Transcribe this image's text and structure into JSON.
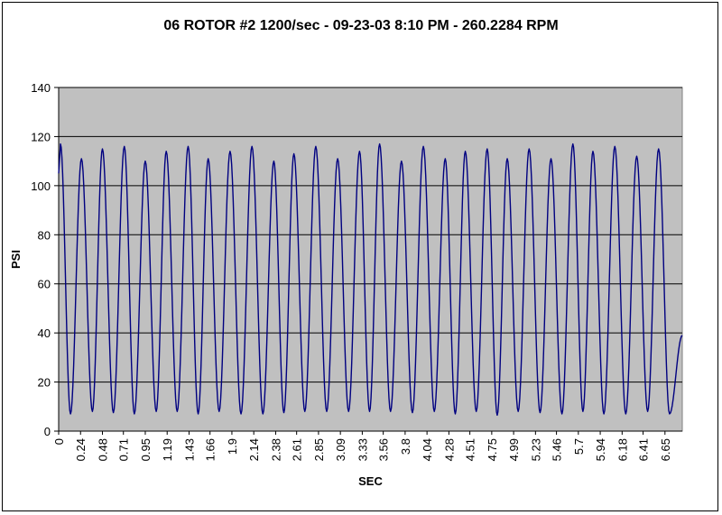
{
  "chart_data": {
    "type": "line",
    "title": "06 ROTOR #2 1200/sec - 09-23-03 8:10 PM -  260.2284 RPM",
    "xlabel": "SEC",
    "ylabel": "PSI",
    "xlim": [
      0,
      6.84
    ],
    "ylim": [
      0,
      140
    ],
    "y_ticks": [
      0,
      20,
      40,
      60,
      80,
      100,
      120,
      140
    ],
    "x_tick_labels": [
      "0",
      "0.24",
      "0.48",
      "0.71",
      "0.95",
      "1.19",
      "1.43",
      "1.66",
      "1.9",
      "2.14",
      "2.38",
      "2.61",
      "2.85",
      "3.09",
      "3.33",
      "3.56",
      "3.8",
      "4.04",
      "4.28",
      "4.51",
      "4.75",
      "4.99",
      "5.23",
      "5.46",
      "5.7",
      "5.94",
      "6.18",
      "6.41",
      "6.65"
    ],
    "grid": "horizontal",
    "legend": "none",
    "plot_background": "#c0c0c0",
    "line_color": "#000080",
    "series": [
      {
        "peaks_x": [
          0.02,
          0.25,
          0.48,
          0.72,
          0.95,
          1.18,
          1.42,
          1.64,
          1.88,
          2.12,
          2.36,
          2.58,
          2.82,
          3.06,
          3.3,
          3.52,
          3.76,
          4.0,
          4.24,
          4.46,
          4.7,
          4.92,
          5.16,
          5.4,
          5.64,
          5.86,
          6.1,
          6.34,
          6.58
        ],
        "peaks_y": [
          117,
          111,
          115,
          116,
          110,
          114,
          116,
          111,
          114,
          116,
          110,
          113,
          116,
          111,
          114,
          117,
          110,
          116,
          111,
          114,
          115,
          111,
          115,
          111,
          117,
          114,
          116,
          112,
          115
        ],
        "troughs_x": [
          0.13,
          0.37,
          0.6,
          0.83,
          1.07,
          1.3,
          1.53,
          1.76,
          2.0,
          2.24,
          2.47,
          2.7,
          2.94,
          3.18,
          3.41,
          3.64,
          3.88,
          4.12,
          4.35,
          4.58,
          4.81,
          5.04,
          5.28,
          5.52,
          5.75,
          5.98,
          6.22,
          6.46,
          6.7
        ],
        "troughs_y": [
          7,
          8,
          7.5,
          7,
          8,
          8,
          7,
          8,
          7,
          7,
          7.5,
          8,
          8,
          8,
          8,
          8,
          7.5,
          8,
          7,
          8,
          6.5,
          8,
          7.5,
          7,
          8,
          7,
          7,
          8,
          7
        ],
        "end_x": 6.84,
        "end_y": 39
      }
    ]
  }
}
